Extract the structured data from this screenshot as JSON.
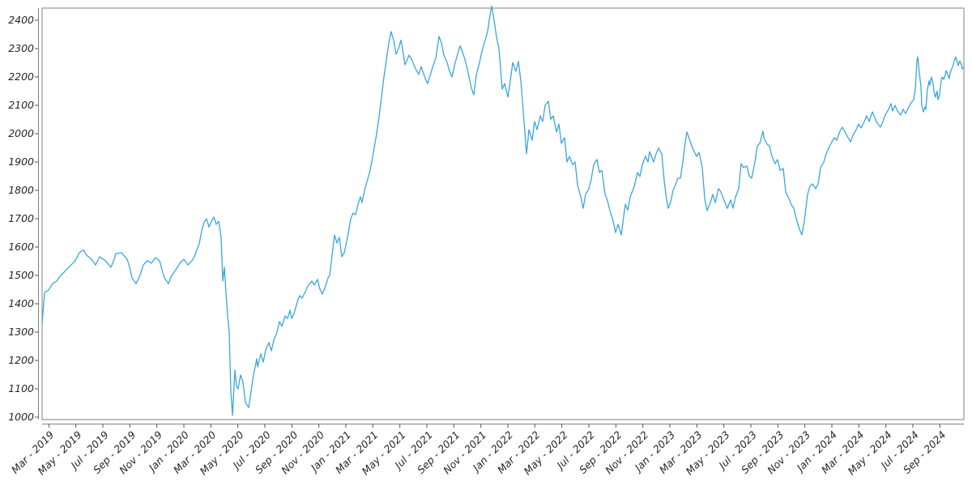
{
  "page": {
    "background": "#ffffff"
  },
  "chart_data": {
    "type": "line",
    "title": "",
    "legend": null,
    "grid": false,
    "line_color": "#3aa6dc",
    "line_width": 1.3,
    "axis_box_color": "#808080",
    "tick_color": "#555555",
    "label_color": "#262626",
    "x_axis": {
      "unit": "months_since_2019_01",
      "range": [
        1.5,
        69.78
      ],
      "first_tick_month": 2,
      "tick_step_months": 2,
      "tick_labels": [
        "Mar - 2019",
        "May - 2019",
        "Jul - 2019",
        "Sep - 2019",
        "Nov - 2019",
        "Jan - 2020",
        "Mar - 2020",
        "May - 2020",
        "Jul - 2020",
        "Sep - 2020",
        "Nov - 2020",
        "Jan - 2021",
        "Mar - 2021",
        "May - 2021",
        "Jul - 2021",
        "Sep - 2021",
        "Nov - 2021",
        "Jan - 2022",
        "Mar - 2022",
        "May - 2022",
        "Jul - 2022",
        "Sep - 2022",
        "Nov - 2022",
        "Jan - 2023",
        "Mar - 2023",
        "May - 2023",
        "Jul - 2023",
        "Sep - 2023",
        "Nov - 2023",
        "Jan - 2024",
        "Mar - 2024",
        "May - 2024",
        "Jul - 2024",
        "Sep - 2024"
      ]
    },
    "y_axis": {
      "min": 1000,
      "max": 2400,
      "step": 100,
      "tick_labels": [
        "1000",
        "1100",
        "1200",
        "1300",
        "1400",
        "1500",
        "1600",
        "1700",
        "1800",
        "1900",
        "2000",
        "2100",
        "2200",
        "2300",
        "2400"
      ]
    },
    "points": [
      [
        1.5,
        1330
      ],
      [
        1.68,
        1440
      ],
      [
        1.98,
        1448
      ],
      [
        2.28,
        1471
      ],
      [
        2.58,
        1480
      ],
      [
        2.88,
        1500
      ],
      [
        3.18,
        1514
      ],
      [
        3.48,
        1529
      ],
      [
        3.96,
        1552
      ],
      [
        4.26,
        1580
      ],
      [
        4.56,
        1590
      ],
      [
        4.8,
        1571
      ],
      [
        5.16,
        1557
      ],
      [
        5.46,
        1537
      ],
      [
        5.76,
        1566
      ],
      [
        6.18,
        1552
      ],
      [
        6.6,
        1529
      ],
      [
        6.78,
        1549
      ],
      [
        6.96,
        1577
      ],
      [
        7.38,
        1580
      ],
      [
        7.8,
        1557
      ],
      [
        7.98,
        1529
      ],
      [
        8.16,
        1491
      ],
      [
        8.46,
        1471
      ],
      [
        8.7,
        1494
      ],
      [
        9.0,
        1537
      ],
      [
        9.3,
        1552
      ],
      [
        9.6,
        1543
      ],
      [
        9.9,
        1563
      ],
      [
        10.2,
        1552
      ],
      [
        10.38,
        1520
      ],
      [
        10.56,
        1491
      ],
      [
        10.86,
        1471
      ],
      [
        11.1,
        1500
      ],
      [
        11.4,
        1520
      ],
      [
        11.7,
        1543
      ],
      [
        12.0,
        1557
      ],
      [
        12.3,
        1537
      ],
      [
        12.6,
        1552
      ],
      [
        12.78,
        1566
      ],
      [
        12.96,
        1590
      ],
      [
        13.14,
        1612
      ],
      [
        13.32,
        1657
      ],
      [
        13.5,
        1688
      ],
      [
        13.68,
        1700
      ],
      [
        13.86,
        1671
      ],
      [
        14.04,
        1691
      ],
      [
        14.22,
        1706
      ],
      [
        14.4,
        1680
      ],
      [
        14.58,
        1691
      ],
      [
        14.76,
        1634
      ],
      [
        14.88,
        1480
      ],
      [
        15.0,
        1529
      ],
      [
        15.12,
        1440
      ],
      [
        15.24,
        1357
      ],
      [
        15.36,
        1300
      ],
      [
        15.48,
        1091
      ],
      [
        15.6,
        1006
      ],
      [
        15.78,
        1166
      ],
      [
        15.9,
        1109
      ],
      [
        16.02,
        1100
      ],
      [
        16.2,
        1149
      ],
      [
        16.38,
        1123
      ],
      [
        16.56,
        1051
      ],
      [
        16.8,
        1034
      ],
      [
        16.98,
        1091
      ],
      [
        17.16,
        1149
      ],
      [
        17.4,
        1206
      ],
      [
        17.46,
        1177
      ],
      [
        17.7,
        1223
      ],
      [
        17.88,
        1194
      ],
      [
        18.06,
        1237
      ],
      [
        18.3,
        1263
      ],
      [
        18.48,
        1234
      ],
      [
        18.66,
        1271
      ],
      [
        18.9,
        1300
      ],
      [
        19.08,
        1337
      ],
      [
        19.26,
        1320
      ],
      [
        19.5,
        1357
      ],
      [
        19.68,
        1348
      ],
      [
        19.86,
        1377
      ],
      [
        19.98,
        1348
      ],
      [
        20.16,
        1366
      ],
      [
        20.4,
        1406
      ],
      [
        20.58,
        1429
      ],
      [
        20.76,
        1420
      ],
      [
        21.0,
        1443
      ],
      [
        21.18,
        1463
      ],
      [
        21.48,
        1480
      ],
      [
        21.66,
        1466
      ],
      [
        21.9,
        1486
      ],
      [
        22.08,
        1451
      ],
      [
        22.26,
        1434
      ],
      [
        22.5,
        1463
      ],
      [
        22.68,
        1491
      ],
      [
        22.8,
        1500
      ],
      [
        22.98,
        1571
      ],
      [
        23.16,
        1643
      ],
      [
        23.34,
        1614
      ],
      [
        23.52,
        1634
      ],
      [
        23.7,
        1566
      ],
      [
        23.88,
        1580
      ],
      [
        24.06,
        1620
      ],
      [
        24.18,
        1651
      ],
      [
        24.36,
        1700
      ],
      [
        24.54,
        1720
      ],
      [
        24.72,
        1714
      ],
      [
        24.9,
        1751
      ],
      [
        25.08,
        1777
      ],
      [
        25.2,
        1757
      ],
      [
        25.38,
        1800
      ],
      [
        25.56,
        1830
      ],
      [
        25.74,
        1860
      ],
      [
        25.92,
        1900
      ],
      [
        26.1,
        1950
      ],
      [
        26.28,
        2000
      ],
      [
        26.46,
        2060
      ],
      [
        26.64,
        2130
      ],
      [
        26.82,
        2200
      ],
      [
        27.0,
        2260
      ],
      [
        27.18,
        2320
      ],
      [
        27.36,
        2360
      ],
      [
        27.54,
        2330
      ],
      [
        27.72,
        2280
      ],
      [
        27.9,
        2300
      ],
      [
        28.08,
        2330
      ],
      [
        28.26,
        2280
      ],
      [
        28.38,
        2243
      ],
      [
        28.68,
        2277
      ],
      [
        28.86,
        2263
      ],
      [
        29.16,
        2229
      ],
      [
        29.4,
        2209
      ],
      [
        29.58,
        2237
      ],
      [
        29.88,
        2194
      ],
      [
        30.06,
        2177
      ],
      [
        30.3,
        2214
      ],
      [
        30.48,
        2243
      ],
      [
        30.66,
        2266
      ],
      [
        30.9,
        2343
      ],
      [
        31.08,
        2320
      ],
      [
        31.26,
        2277
      ],
      [
        31.5,
        2251
      ],
      [
        31.68,
        2220
      ],
      [
        31.86,
        2200
      ],
      [
        32.1,
        2251
      ],
      [
        32.28,
        2280
      ],
      [
        32.46,
        2310
      ],
      [
        32.7,
        2280
      ],
      [
        32.88,
        2251
      ],
      [
        33.06,
        2214
      ],
      [
        33.3,
        2160
      ],
      [
        33.48,
        2137
      ],
      [
        33.66,
        2206
      ],
      [
        33.9,
        2251
      ],
      [
        34.08,
        2291
      ],
      [
        34.26,
        2320
      ],
      [
        34.5,
        2360
      ],
      [
        34.68,
        2420
      ],
      [
        34.8,
        2450
      ],
      [
        34.98,
        2400
      ],
      [
        35.16,
        2340
      ],
      [
        35.34,
        2300
      ],
      [
        35.58,
        2157
      ],
      [
        35.76,
        2177
      ],
      [
        36.0,
        2129
      ],
      [
        36.18,
        2186
      ],
      [
        36.36,
        2251
      ],
      [
        36.6,
        2220
      ],
      [
        36.78,
        2255
      ],
      [
        36.96,
        2186
      ],
      [
        37.14,
        2080
      ],
      [
        37.38,
        1929
      ],
      [
        37.56,
        2014
      ],
      [
        37.8,
        1977
      ],
      [
        37.98,
        2043
      ],
      [
        38.16,
        2014
      ],
      [
        38.4,
        2063
      ],
      [
        38.58,
        2043
      ],
      [
        38.76,
        2100
      ],
      [
        39.0,
        2114
      ],
      [
        39.18,
        2051
      ],
      [
        39.36,
        2063
      ],
      [
        39.6,
        2006
      ],
      [
        39.78,
        2034
      ],
      [
        39.96,
        1966
      ],
      [
        40.2,
        1986
      ],
      [
        40.38,
        1900
      ],
      [
        40.56,
        1920
      ],
      [
        40.8,
        1890
      ],
      [
        40.98,
        1900
      ],
      [
        41.16,
        1820
      ],
      [
        41.4,
        1777
      ],
      [
        41.58,
        1737
      ],
      [
        41.76,
        1786
      ],
      [
        42.0,
        1806
      ],
      [
        42.18,
        1840
      ],
      [
        42.36,
        1891
      ],
      [
        42.6,
        1909
      ],
      [
        42.78,
        1863
      ],
      [
        42.96,
        1871
      ],
      [
        43.2,
        1786
      ],
      [
        43.38,
        1763
      ],
      [
        43.56,
        1729
      ],
      [
        43.8,
        1691
      ],
      [
        43.98,
        1651
      ],
      [
        44.16,
        1680
      ],
      [
        44.4,
        1643
      ],
      [
        44.58,
        1709
      ],
      [
        44.7,
        1751
      ],
      [
        44.88,
        1730
      ],
      [
        45.06,
        1777
      ],
      [
        45.36,
        1814
      ],
      [
        45.6,
        1863
      ],
      [
        45.78,
        1849
      ],
      [
        45.96,
        1891
      ],
      [
        46.2,
        1920
      ],
      [
        46.38,
        1900
      ],
      [
        46.5,
        1937
      ],
      [
        46.8,
        1900
      ],
      [
        46.98,
        1929
      ],
      [
        47.16,
        1949
      ],
      [
        47.4,
        1929
      ],
      [
        47.58,
        1834
      ],
      [
        47.76,
        1766
      ],
      [
        47.88,
        1737
      ],
      [
        48.06,
        1760
      ],
      [
        48.24,
        1800
      ],
      [
        48.42,
        1820
      ],
      [
        48.6,
        1843
      ],
      [
        48.78,
        1843
      ],
      [
        48.96,
        1900
      ],
      [
        49.08,
        1950
      ],
      [
        49.26,
        2006
      ],
      [
        49.68,
        1949
      ],
      [
        49.98,
        1920
      ],
      [
        50.16,
        1934
      ],
      [
        50.4,
        1880
      ],
      [
        50.58,
        1771
      ],
      [
        50.76,
        1729
      ],
      [
        51.0,
        1757
      ],
      [
        51.18,
        1786
      ],
      [
        51.36,
        1757
      ],
      [
        51.6,
        1806
      ],
      [
        51.78,
        1794
      ],
      [
        51.96,
        1771
      ],
      [
        52.26,
        1737
      ],
      [
        52.5,
        1766
      ],
      [
        52.68,
        1737
      ],
      [
        52.86,
        1777
      ],
      [
        53.1,
        1806
      ],
      [
        53.28,
        1894
      ],
      [
        53.46,
        1880
      ],
      [
        53.7,
        1886
      ],
      [
        53.88,
        1851
      ],
      [
        54.06,
        1843
      ],
      [
        54.3,
        1900
      ],
      [
        54.48,
        1957
      ],
      [
        54.66,
        1966
      ],
      [
        54.9,
        2009
      ],
      [
        54.96,
        1986
      ],
      [
        55.2,
        1963
      ],
      [
        55.38,
        1957
      ],
      [
        55.56,
        1920
      ],
      [
        55.8,
        1894
      ],
      [
        55.98,
        1909
      ],
      [
        56.16,
        1871
      ],
      [
        56.4,
        1877
      ],
      [
        56.58,
        1794
      ],
      [
        56.76,
        1777
      ],
      [
        57.0,
        1749
      ],
      [
        57.18,
        1737
      ],
      [
        57.36,
        1700
      ],
      [
        57.6,
        1663
      ],
      [
        57.78,
        1643
      ],
      [
        57.96,
        1691
      ],
      [
        58.2,
        1786
      ],
      [
        58.38,
        1814
      ],
      [
        58.56,
        1823
      ],
      [
        58.8,
        1806
      ],
      [
        58.98,
        1823
      ],
      [
        59.16,
        1880
      ],
      [
        59.4,
        1900
      ],
      [
        59.58,
        1929
      ],
      [
        59.76,
        1949
      ],
      [
        60.0,
        1971
      ],
      [
        60.18,
        1986
      ],
      [
        60.36,
        1977
      ],
      [
        60.6,
        2009
      ],
      [
        60.78,
        2023
      ],
      [
        60.96,
        2006
      ],
      [
        61.2,
        1986
      ],
      [
        61.38,
        1971
      ],
      [
        61.56,
        1994
      ],
      [
        61.8,
        2014
      ],
      [
        61.98,
        2034
      ],
      [
        62.16,
        2020
      ],
      [
        62.4,
        2043
      ],
      [
        62.58,
        2063
      ],
      [
        62.76,
        2043
      ],
      [
        63.0,
        2077
      ],
      [
        63.18,
        2057
      ],
      [
        63.36,
        2037
      ],
      [
        63.6,
        2023
      ],
      [
        63.78,
        2043
      ],
      [
        63.96,
        2066
      ],
      [
        64.2,
        2086
      ],
      [
        64.38,
        2106
      ],
      [
        64.5,
        2080
      ],
      [
        64.68,
        2100
      ],
      [
        64.86,
        2080
      ],
      [
        65.1,
        2066
      ],
      [
        65.28,
        2086
      ],
      [
        65.46,
        2071
      ],
      [
        65.7,
        2094
      ],
      [
        65.88,
        2109
      ],
      [
        66.06,
        2120
      ],
      [
        66.18,
        2157
      ],
      [
        66.3,
        2255
      ],
      [
        66.36,
        2271
      ],
      [
        66.48,
        2214
      ],
      [
        66.6,
        2166
      ],
      [
        66.66,
        2100
      ],
      [
        66.78,
        2077
      ],
      [
        66.9,
        2094
      ],
      [
        66.96,
        2086
      ],
      [
        67.08,
        2157
      ],
      [
        67.2,
        2186
      ],
      [
        67.26,
        2171
      ],
      [
        67.38,
        2200
      ],
      [
        67.5,
        2177
      ],
      [
        67.56,
        2149
      ],
      [
        67.68,
        2129
      ],
      [
        67.8,
        2151
      ],
      [
        67.86,
        2120
      ],
      [
        67.98,
        2137
      ],
      [
        68.1,
        2186
      ],
      [
        68.16,
        2200
      ],
      [
        68.28,
        2191
      ],
      [
        68.4,
        2206
      ],
      [
        68.46,
        2223
      ],
      [
        68.58,
        2209
      ],
      [
        68.7,
        2194
      ],
      [
        68.76,
        2214
      ],
      [
        68.88,
        2229
      ],
      [
        69.0,
        2243
      ],
      [
        69.06,
        2257
      ],
      [
        69.18,
        2271
      ],
      [
        69.3,
        2251
      ],
      [
        69.36,
        2240
      ],
      [
        69.48,
        2257
      ],
      [
        69.6,
        2243
      ],
      [
        69.66,
        2229
      ],
      [
        69.78,
        2234
      ]
    ]
  }
}
